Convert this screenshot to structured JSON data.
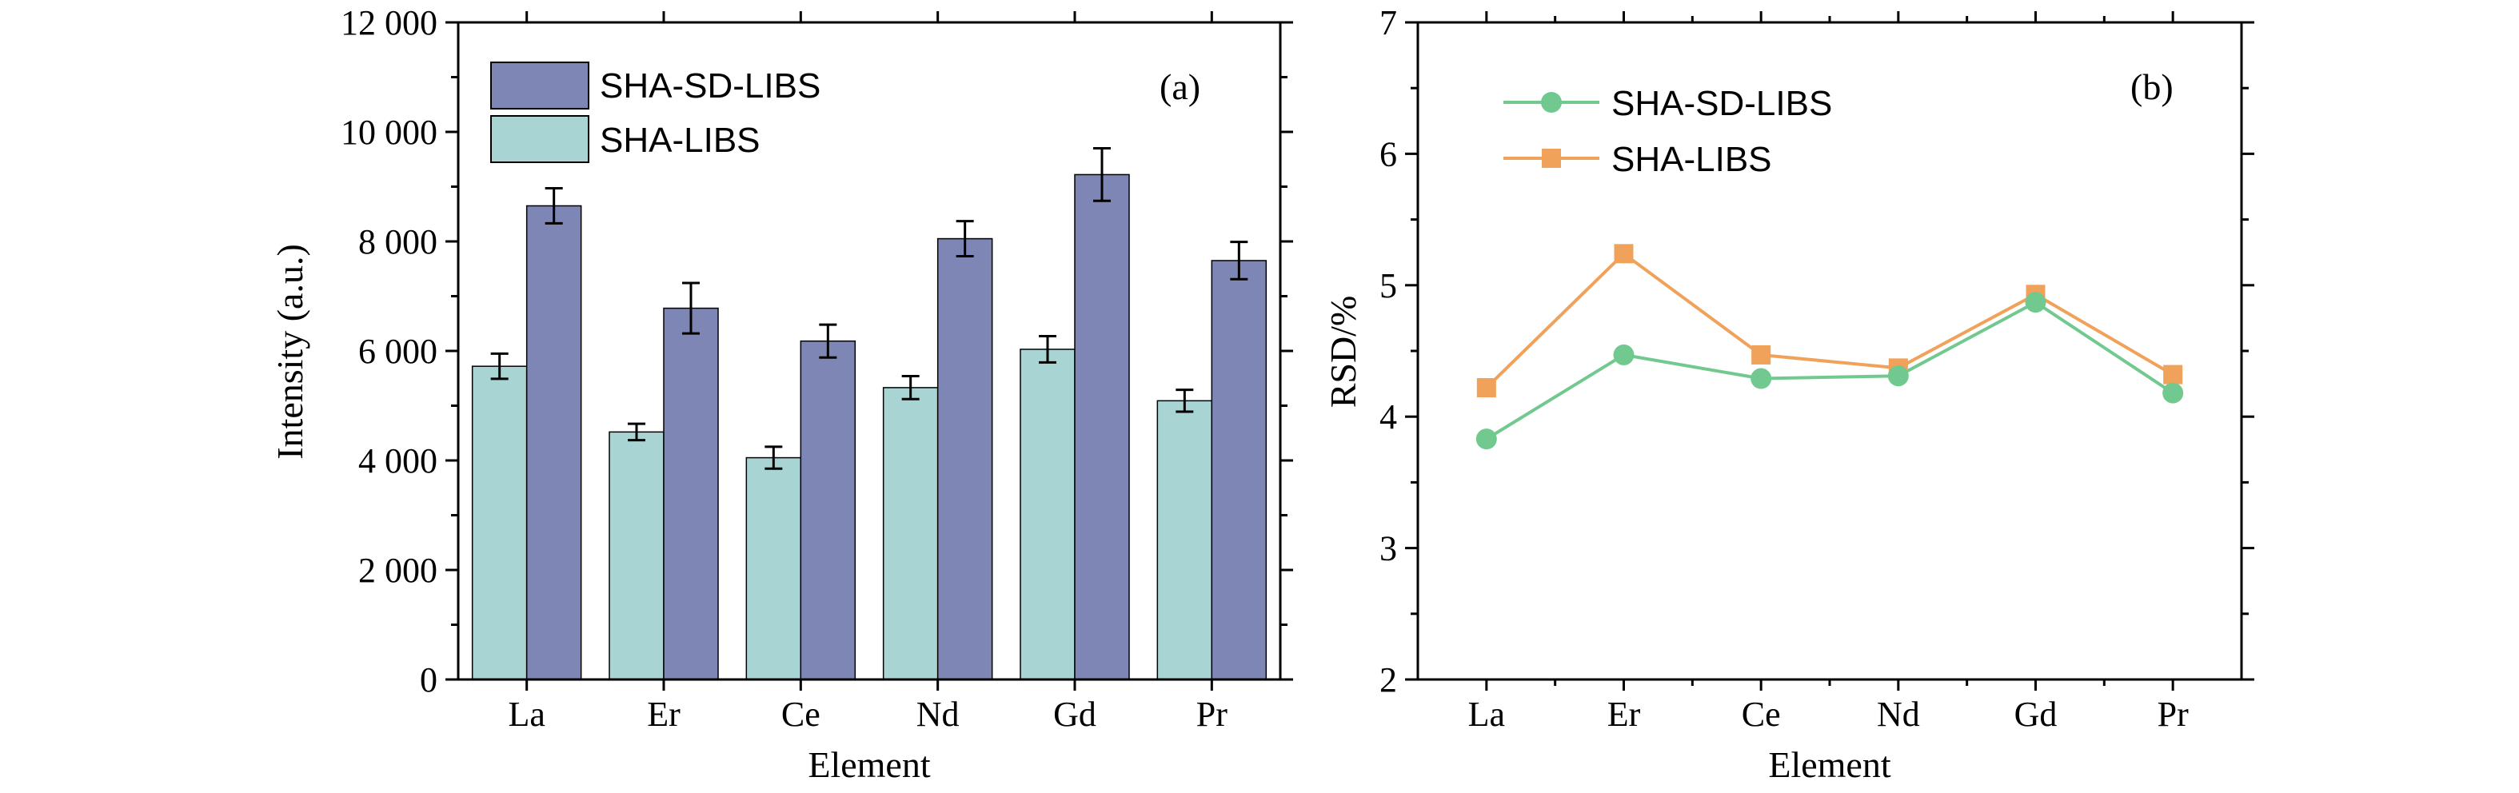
{
  "chart_data": [
    {
      "type": "bar",
      "panel_label": "(a)",
      "xlabel": "Element",
      "ylabel": "Intensity (a.u.)",
      "categories": [
        "La",
        "Er",
        "Ce",
        "Nd",
        "Gd",
        "Pr"
      ],
      "ylim": [
        0,
        12000
      ],
      "yticks": [
        0,
        2000,
        4000,
        6000,
        8000,
        10000,
        12000
      ],
      "ytick_labels": [
        "0",
        "2 000",
        "4 000",
        "6 000",
        "8 000",
        "10 000",
        "12 000"
      ],
      "legend_position": "top-left",
      "series": [
        {
          "name": "SHA-LIBS",
          "color": "#a8d4d4",
          "values": [
            5720,
            4520,
            4050,
            5330,
            6030,
            5090
          ],
          "errors": [
            230,
            150,
            200,
            210,
            240,
            200
          ]
        },
        {
          "name": "SHA-SD-LIBS",
          "color": "#7e86b6",
          "values": [
            8650,
            6780,
            6180,
            8050,
            9220,
            7650
          ],
          "errors": [
            320,
            460,
            300,
            320,
            480,
            340
          ]
        }
      ]
    },
    {
      "type": "line",
      "panel_label": "(b)",
      "xlabel": "Element",
      "ylabel": "RSD/%",
      "categories": [
        "La",
        "Er",
        "Ce",
        "Nd",
        "Gd",
        "Pr"
      ],
      "ylim": [
        2,
        7
      ],
      "yticks": [
        2,
        3,
        4,
        5,
        6,
        7
      ],
      "ytick_labels": [
        "2",
        "3",
        "4",
        "5",
        "6",
        "7"
      ],
      "legend_position": "top-left",
      "series": [
        {
          "name": "SHA-SD-LIBS",
          "color": "#72c98f",
          "marker": "circle",
          "values": [
            3.83,
            4.47,
            4.29,
            4.31,
            4.87,
            4.18
          ]
        },
        {
          "name": "SHA-LIBS",
          "color": "#f0a15a",
          "marker": "square",
          "values": [
            4.22,
            5.24,
            4.47,
            4.37,
            4.93,
            4.32
          ]
        }
      ]
    }
  ]
}
